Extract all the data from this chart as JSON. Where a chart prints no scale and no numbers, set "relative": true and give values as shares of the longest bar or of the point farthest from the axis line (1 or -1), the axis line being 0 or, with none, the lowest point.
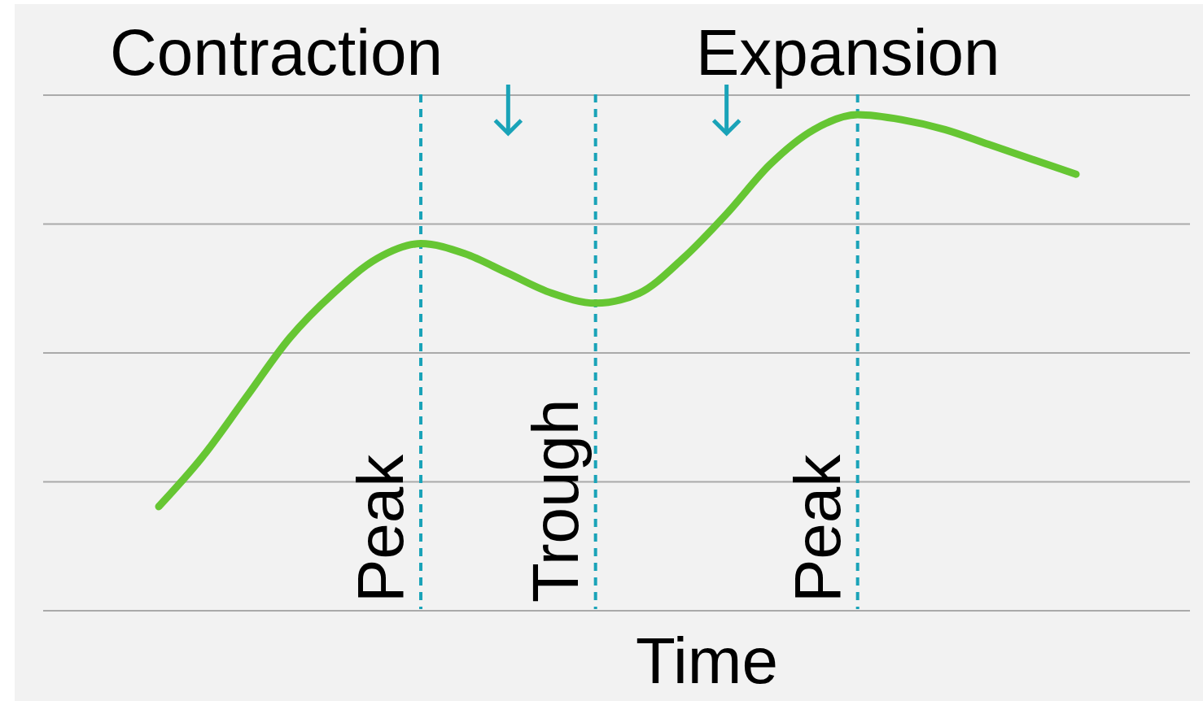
{
  "chart_data": {
    "type": "line",
    "relative": true,
    "xlabel": "Time",
    "grid": true,
    "categories": [
      null,
      null,
      null,
      null,
      null,
      null,
      null,
      null,
      null,
      null,
      null,
      null,
      null,
      null,
      null,
      null,
      null,
      null,
      null,
      null,
      null,
      null
    ],
    "series": [
      {
        "color": "#66c633",
        "values": [
          0.21,
          0.31,
          0.43,
          0.55,
          0.64,
          0.71,
          0.74,
          0.72,
          0.68,
          0.64,
          0.62,
          0.64,
          0.71,
          0.8,
          0.9,
          0.97,
          1,
          0.99,
          0.97,
          0.94,
          0.91,
          0.88
        ]
      }
    ],
    "annotations": [
      "Contraction",
      "Expansion",
      "Peak",
      "Trough",
      "Peak"
    ]
  }
}
